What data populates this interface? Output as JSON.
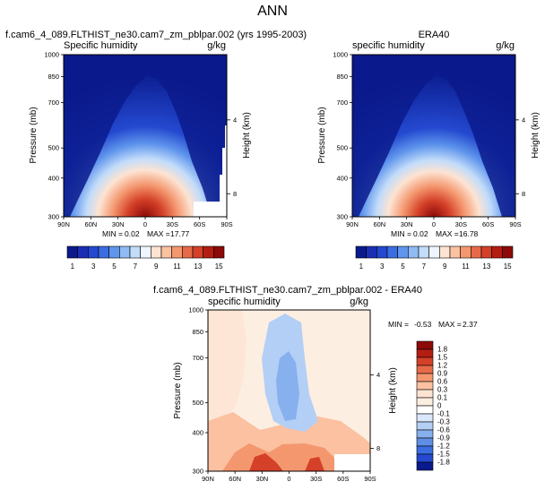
{
  "page_title": "ANN",
  "chart_data": [
    {
      "type": "heatmap",
      "title": "f.cam6_4_089.FLTHIST_ne30.cam7_zm_pblpar.002 (yrs 1995-2003)",
      "left_label": "Specific humidity",
      "units": "g/kg",
      "ylabel": "Pressure (mb)",
      "ylabel_right": "Height (km)",
      "x_ticks": [
        "90N",
        "60N",
        "30N",
        "0",
        "30S",
        "60S",
        "90S"
      ],
      "y_ticks": [
        300,
        400,
        500,
        700,
        850,
        1000
      ],
      "y_ticks_right": [
        8,
        4
      ],
      "ylim": [
        1000,
        300
      ],
      "min_label": "MIN =",
      "min_value": "0.02",
      "max_label": "MAX =",
      "max_value": "17.77",
      "peak": 17.77
    },
    {
      "type": "heatmap",
      "title": "ERA40",
      "left_label": "specific humidity",
      "units": "g/kg",
      "ylabel": "Pressure (mb)",
      "ylabel_right": "Height (km)",
      "x_ticks": [
        "90N",
        "60N",
        "30N",
        "0",
        "30S",
        "60S",
        "90S"
      ],
      "y_ticks": [
        300,
        400,
        500,
        700,
        850,
        1000
      ],
      "y_ticks_right": [
        8,
        4
      ],
      "ylim": [
        1000,
        300
      ],
      "min_label": "MIN =",
      "min_value": "0.02",
      "max_label": "MAX =",
      "max_value": "16.78",
      "peak": 16.78
    },
    {
      "type": "heatmap",
      "title": "f.cam6_4_089.FLTHIST_ne30.cam7_zm_pblpar.002 - ERA40",
      "left_label": "specific humidity",
      "units": "g/kg",
      "ylabel": "Pressure (mb)",
      "ylabel_right": "Height (km)",
      "x_ticks": [
        "90N",
        "60N",
        "30N",
        "0",
        "30S",
        "60S",
        "90S"
      ],
      "y_ticks": [
        300,
        400,
        500,
        700,
        850,
        1000
      ],
      "y_ticks_right": [
        8,
        4
      ],
      "ylim": [
        1000,
        300
      ],
      "min_label": "MIN =",
      "min_value": "-0.53",
      "max_label": "MAX =",
      "max_value": "2.37"
    }
  ],
  "shared_colorbar": {
    "labels": [
      "1",
      "3",
      "5",
      "7",
      "9",
      "11",
      "13",
      "15"
    ],
    "colors": [
      "#0a1a8c",
      "#1a2fb4",
      "#2449d0",
      "#3a6ee0",
      "#5f95ec",
      "#8fbaf3",
      "#c2dcfa",
      "#eef5ff",
      "#fde3d2",
      "#fbc1a0",
      "#f4976f",
      "#e76a48",
      "#d44028",
      "#b41d12",
      "#8c0a08"
    ]
  },
  "diff_colorbar": {
    "labels": [
      "1.8",
      "1.5",
      "1.2",
      "0.9",
      "0.6",
      "0.3",
      "0.1",
      "0",
      "-0.1",
      "-0.3",
      "-0.6",
      "-0.9",
      "-1.2",
      "-1.5",
      "-1.8"
    ],
    "colors": [
      "#8c0a08",
      "#b41d12",
      "#d44028",
      "#e76a48",
      "#f4976f",
      "#fbc1a0",
      "#fde3d2",
      "#fdeee2",
      "#ffffff",
      "#dbe8fb",
      "#b3cff5",
      "#86b0ee",
      "#5f8fe4",
      "#3a6ee0",
      "#2449d0",
      "#0a1a8c"
    ]
  }
}
